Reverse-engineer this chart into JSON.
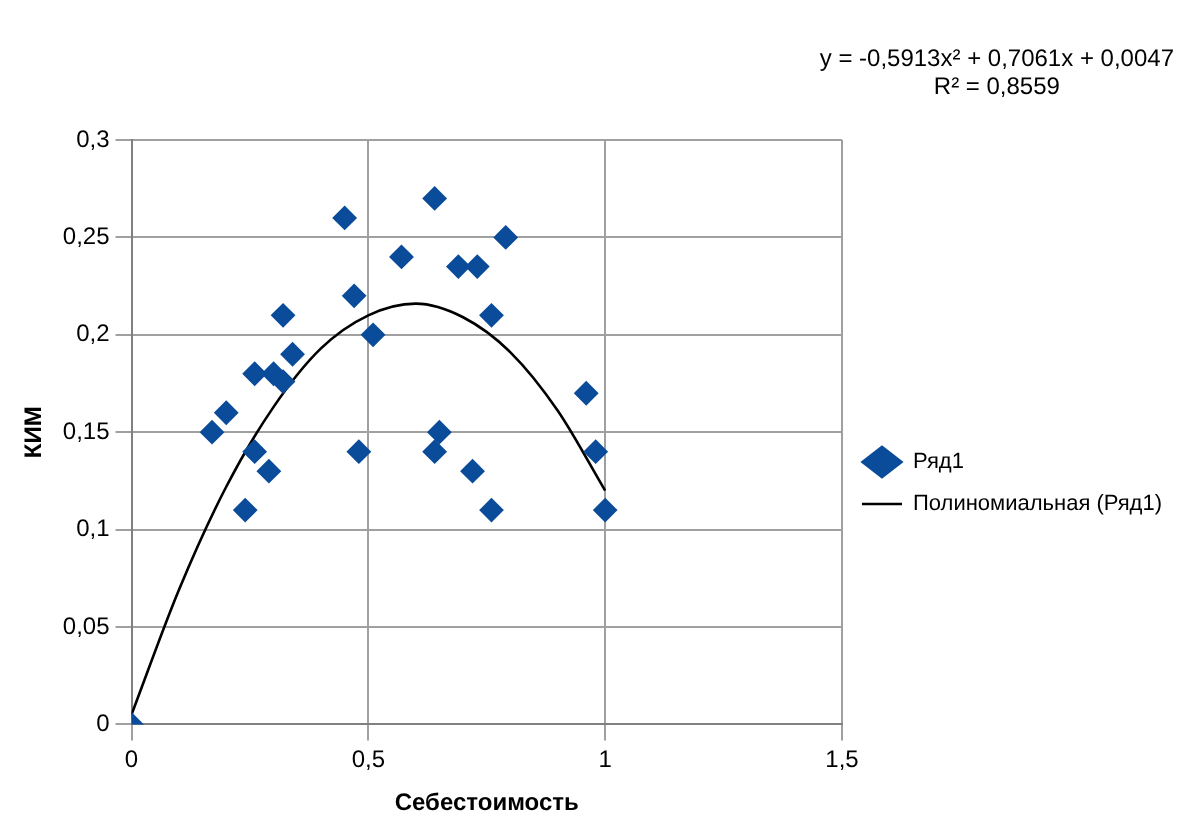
{
  "chart_data": {
    "type": "scatter",
    "xlabel": "Себестоимость",
    "ylabel": "КИМ",
    "xlim": [
      0,
      1.5
    ],
    "xticks": [
      0,
      {
        "value": 0.5,
        "label": "0,5"
      },
      1,
      {
        "value": 1.5,
        "label": "1,5"
      }
    ],
    "ylim": [
      0,
      0.3
    ],
    "yticks": [
      0,
      {
        "value": 0.05,
        "label": "0,05"
      },
      {
        "value": 0.1,
        "label": "0,1"
      },
      {
        "value": 0.15,
        "label": "0,15"
      },
      {
        "value": 0.2,
        "label": "0,2"
      },
      {
        "value": 0.25,
        "label": "0,25"
      },
      {
        "value": 0.3,
        "label": "0,3"
      }
    ],
    "grid": true,
    "legend": "right",
    "marker": "diamond",
    "annotations": [
      "y = -0,5913x² + 0,7061x + 0,0047",
      "R² = 0,8559"
    ],
    "series": [
      {
        "name": "Ряд1",
        "type": "scatter",
        "color": "#0a4c9a",
        "x": [
          0,
          0.17,
          0.2,
          0.24,
          0.26,
          0.26,
          0.29,
          0.3,
          0.32,
          0.32,
          0.34,
          0.45,
          0.47,
          0.48,
          0.51,
          0.57,
          0.64,
          0.64,
          0.65,
          0.69,
          0.73,
          0.72,
          0.76,
          0.76,
          0.79,
          0.96,
          0.98,
          1.0
        ],
        "values": [
          0,
          0.15,
          0.16,
          0.11,
          0.14,
          0.18,
          0.13,
          0.18,
          0.176,
          0.21,
          0.19,
          0.26,
          0.22,
          0.14,
          0.2,
          0.24,
          0.27,
          0.14,
          0.15,
          0.235,
          0.235,
          0.13,
          0.11,
          0.21,
          0.25,
          0.17,
          0.14,
          0.11
        ]
      },
      {
        "name": "Полиномиальная (Ряд1)",
        "type": "line",
        "color": "#000000",
        "marker": "none",
        "line_style": "solid",
        "x": [
          0,
          0.1,
          0.2,
          0.3,
          0.4,
          0.5,
          0.6,
          0.7,
          0.8,
          0.9,
          1.0
        ],
        "values": [
          0.005,
          0.069,
          0.122,
          0.163,
          0.193,
          0.21,
          0.216,
          0.209,
          0.191,
          0.161,
          0.12
        ]
      }
    ]
  }
}
